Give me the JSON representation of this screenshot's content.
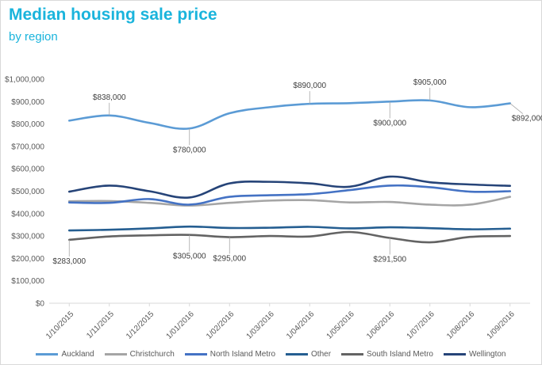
{
  "chart_data": {
    "type": "line",
    "title": "Median housing sale price",
    "subtitle": "by region",
    "xlabel": "",
    "ylabel": "",
    "categories": [
      "1/10/2015",
      "1/11/2015",
      "1/12/2015",
      "1/01/2016",
      "1/02/2016",
      "1/03/2016",
      "1/04/2016",
      "1/05/2016",
      "1/06/2016",
      "1/07/2016",
      "1/08/2016",
      "1/09/2016"
    ],
    "ylim": [
      0,
      1000000
    ],
    "yticks": [
      {
        "value": 0,
        "label": "$0"
      },
      {
        "value": 100000,
        "label": "$100,000"
      },
      {
        "value": 200000,
        "label": "$200,000"
      },
      {
        "value": 300000,
        "label": "$300,000"
      },
      {
        "value": 400000,
        "label": "$400,000"
      },
      {
        "value": 500000,
        "label": "$500,000"
      },
      {
        "value": 600000,
        "label": "$600,000"
      },
      {
        "value": 700000,
        "label": "$700,000"
      },
      {
        "value": 800000,
        "label": "$800,000"
      },
      {
        "value": 900000,
        "label": "$900,000"
      },
      {
        "value": 1000000,
        "label": "$1,000,000"
      }
    ],
    "grid": false,
    "legend": "bottom",
    "series": [
      {
        "name": "Auckland",
        "color": "#5b9bd5",
        "values": [
          815000,
          838000,
          805000,
          780000,
          848000,
          875000,
          890000,
          893000,
          900000,
          905000,
          875000,
          892000
        ]
      },
      {
        "name": "Christchurch",
        "color": "#a5a5a5",
        "values": [
          455000,
          456000,
          448000,
          436000,
          448000,
          458000,
          460000,
          450000,
          452000,
          440000,
          440000,
          475000
        ]
      },
      {
        "name": "North Island Metro",
        "color": "#4472c4",
        "values": [
          450000,
          448000,
          465000,
          440000,
          475000,
          482000,
          487000,
          505000,
          525000,
          518000,
          498000,
          500000
        ]
      },
      {
        "name": "Other",
        "color": "#255e91",
        "values": [
          325000,
          328000,
          334000,
          342000,
          336000,
          337000,
          341000,
          334000,
          339000,
          335000,
          330000,
          333000
        ]
      },
      {
        "name": "South Island Metro",
        "color": "#636363",
        "values": [
          283000,
          298000,
          303000,
          305000,
          295000,
          300000,
          298000,
          318000,
          291500,
          272000,
          296000,
          300000
        ]
      },
      {
        "name": "Wellington",
        "color": "#264478",
        "values": [
          498000,
          525000,
          500000,
          472000,
          535000,
          542000,
          535000,
          520000,
          565000,
          540000,
          530000,
          524000
        ]
      }
    ],
    "annotations": [
      {
        "series": "Auckland",
        "index": 1,
        "label": "$838,000",
        "pos": "above"
      },
      {
        "series": "Auckland",
        "index": 3,
        "label": "$780,000",
        "pos": "below"
      },
      {
        "series": "Auckland",
        "index": 6,
        "label": "$890,000",
        "pos": "above"
      },
      {
        "series": "Auckland",
        "index": 8,
        "label": "$900,000",
        "pos": "below"
      },
      {
        "series": "Auckland",
        "index": 9,
        "label": "$905,000",
        "pos": "above"
      },
      {
        "series": "Auckland",
        "index": 11,
        "label": "$892,000",
        "pos": "below-right"
      },
      {
        "series": "South Island Metro",
        "index": 0,
        "label": "$283,000",
        "pos": "below"
      },
      {
        "series": "South Island Metro",
        "index": 3,
        "label": "$305,000",
        "pos": "below"
      },
      {
        "series": "South Island Metro",
        "index": 4,
        "label": "$295,000",
        "pos": "below"
      },
      {
        "series": "South Island Metro",
        "index": 8,
        "label": "$291,500",
        "pos": "below"
      }
    ]
  }
}
